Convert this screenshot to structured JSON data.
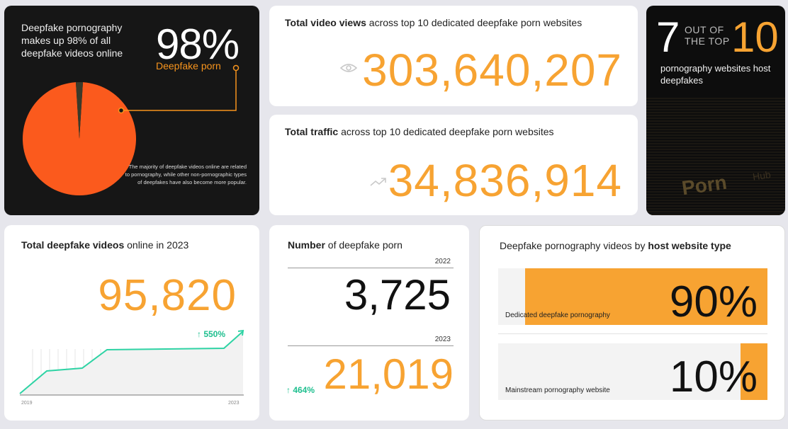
{
  "card_majority": {
    "title": "Deepfake pornography makes up 98% of all deepfake videos online",
    "big_value": "98%",
    "subtitle": "Deepfake porn",
    "note": "The majority of deepfake videos online are related to pornography, while other non-pornographic types of deepfakes have also become more popular.",
    "pie_share": 0.98,
    "colors": {
      "pie": "#fb5a1d",
      "accent": "#f7941d"
    }
  },
  "card_views": {
    "label_bold": "Total video views",
    "label_rest": " across top 10 dedicated deepfake porn websites",
    "value": "303,640,207",
    "icon": "eye-icon"
  },
  "card_traffic": {
    "label_bold": "Total traffic",
    "label_rest": " across top 10 dedicated deepfake porn websites",
    "value": "34,836,914",
    "icon": "trend-up-icon"
  },
  "card_top10": {
    "count": "7",
    "out_of": "OUT OF THE TOP",
    "total": "10",
    "desc": "pornography websites host deepfakes",
    "bg_text": "Porn",
    "bg_text2": "Hub"
  },
  "card_total_videos": {
    "label_bold": "Total deepfake videos",
    "label_rest": " online in 2023",
    "value": "95,820",
    "growth": "↑ 550%",
    "year_start": "2019",
    "year_end": "2023"
  },
  "card_number": {
    "label_bold": "Number",
    "label_rest": " of deepfake porn",
    "year1": "2022",
    "value1": "3,725",
    "year2": "2023",
    "value2": "21,019",
    "growth": "↑ 464%"
  },
  "card_host_type": {
    "label_rest": "Deepfake pornography videos by ",
    "label_bold": "host website type",
    "rows": [
      {
        "label": "Dedicated deepfake pornography",
        "value": "90%",
        "share": 0.9
      },
      {
        "label": "Mainstream pornography website",
        "value": "10%",
        "share": 0.1
      }
    ]
  },
  "colors": {
    "orange": "#f7a332",
    "green": "#1fbf8f",
    "dark": "#161616"
  }
}
